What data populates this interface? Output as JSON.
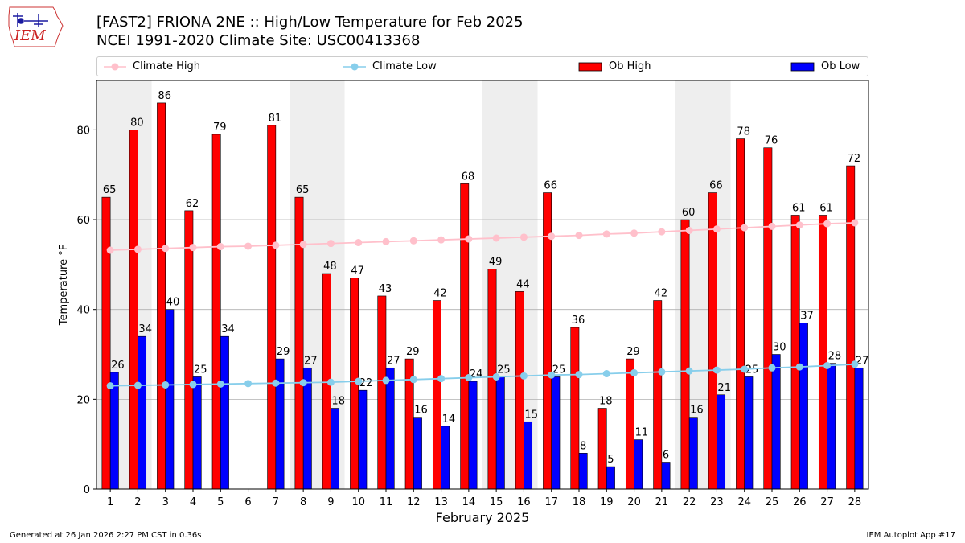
{
  "colors": {
    "ob_high": "#ff0000",
    "ob_low": "#0000ff",
    "climate_high": "#ffc0cb",
    "climate_low": "#87ceeb",
    "weekend_band": "#eeeeee",
    "grid": "#b0b0b0"
  },
  "logo": {
    "text": "IEM"
  },
  "title_line1": "[FAST2] FRIONA 2NE :: High/Low Temperature for Feb 2025",
  "title_line2": "NCEI 1991-2020 Climate Site: USC00413368",
  "legend": {
    "climate_high": "Climate High",
    "climate_low": "Climate Low",
    "ob_high": "Ob High",
    "ob_low": "Ob Low"
  },
  "footer": {
    "left": "Generated at 26 Jan 2026 2:27 PM CST in 0.36s",
    "right": "IEM Autoplot App #17"
  },
  "chart_data": {
    "type": "bar",
    "title": "[FAST2] FRIONA 2NE :: High/Low Temperature for Feb 2025",
    "xlabel": "February 2025",
    "ylabel": "Temperature °F",
    "ylim": [
      0,
      91
    ],
    "yticks": [
      0,
      20,
      40,
      60,
      80
    ],
    "categories": [
      "1",
      "2",
      "3",
      "4",
      "5",
      "6",
      "7",
      "8",
      "9",
      "10",
      "11",
      "12",
      "13",
      "14",
      "15",
      "16",
      "17",
      "18",
      "19",
      "20",
      "21",
      "22",
      "23",
      "24",
      "25",
      "26",
      "27",
      "28"
    ],
    "weekend_bands": [
      [
        1,
        2
      ],
      [
        8,
        9
      ],
      [
        15,
        16
      ],
      [
        22,
        23
      ]
    ],
    "series": [
      {
        "name": "Ob High",
        "kind": "bar",
        "values": [
          65,
          80,
          86,
          62,
          79,
          null,
          81,
          65,
          48,
          47,
          43,
          29,
          42,
          68,
          49,
          44,
          66,
          36,
          18,
          29,
          42,
          60,
          66,
          78,
          76,
          61,
          61,
          72
        ]
      },
      {
        "name": "Ob Low",
        "kind": "bar",
        "values": [
          26,
          34,
          40,
          25,
          34,
          null,
          29,
          27,
          18,
          22,
          27,
          16,
          14,
          24,
          25,
          15,
          25,
          8,
          5,
          11,
          6,
          16,
          21,
          25,
          30,
          37,
          28,
          27
        ]
      },
      {
        "name": "Climate High",
        "kind": "line",
        "values": [
          53.2,
          53.4,
          53.6,
          53.8,
          54.0,
          54.1,
          54.3,
          54.5,
          54.7,
          54.9,
          55.1,
          55.3,
          55.5,
          55.7,
          55.9,
          56.1,
          56.3,
          56.5,
          56.8,
          57.0,
          57.3,
          57.6,
          57.9,
          58.2,
          58.5,
          58.8,
          59.1,
          59.3
        ]
      },
      {
        "name": "Climate Low",
        "kind": "line",
        "values": [
          23.0,
          23.1,
          23.2,
          23.3,
          23.4,
          23.5,
          23.6,
          23.7,
          23.8,
          24.0,
          24.2,
          24.4,
          24.6,
          24.8,
          25.0,
          25.2,
          25.4,
          25.5,
          25.7,
          25.9,
          26.1,
          26.3,
          26.5,
          26.7,
          27.0,
          27.2,
          27.5,
          27.8
        ]
      }
    ]
  }
}
